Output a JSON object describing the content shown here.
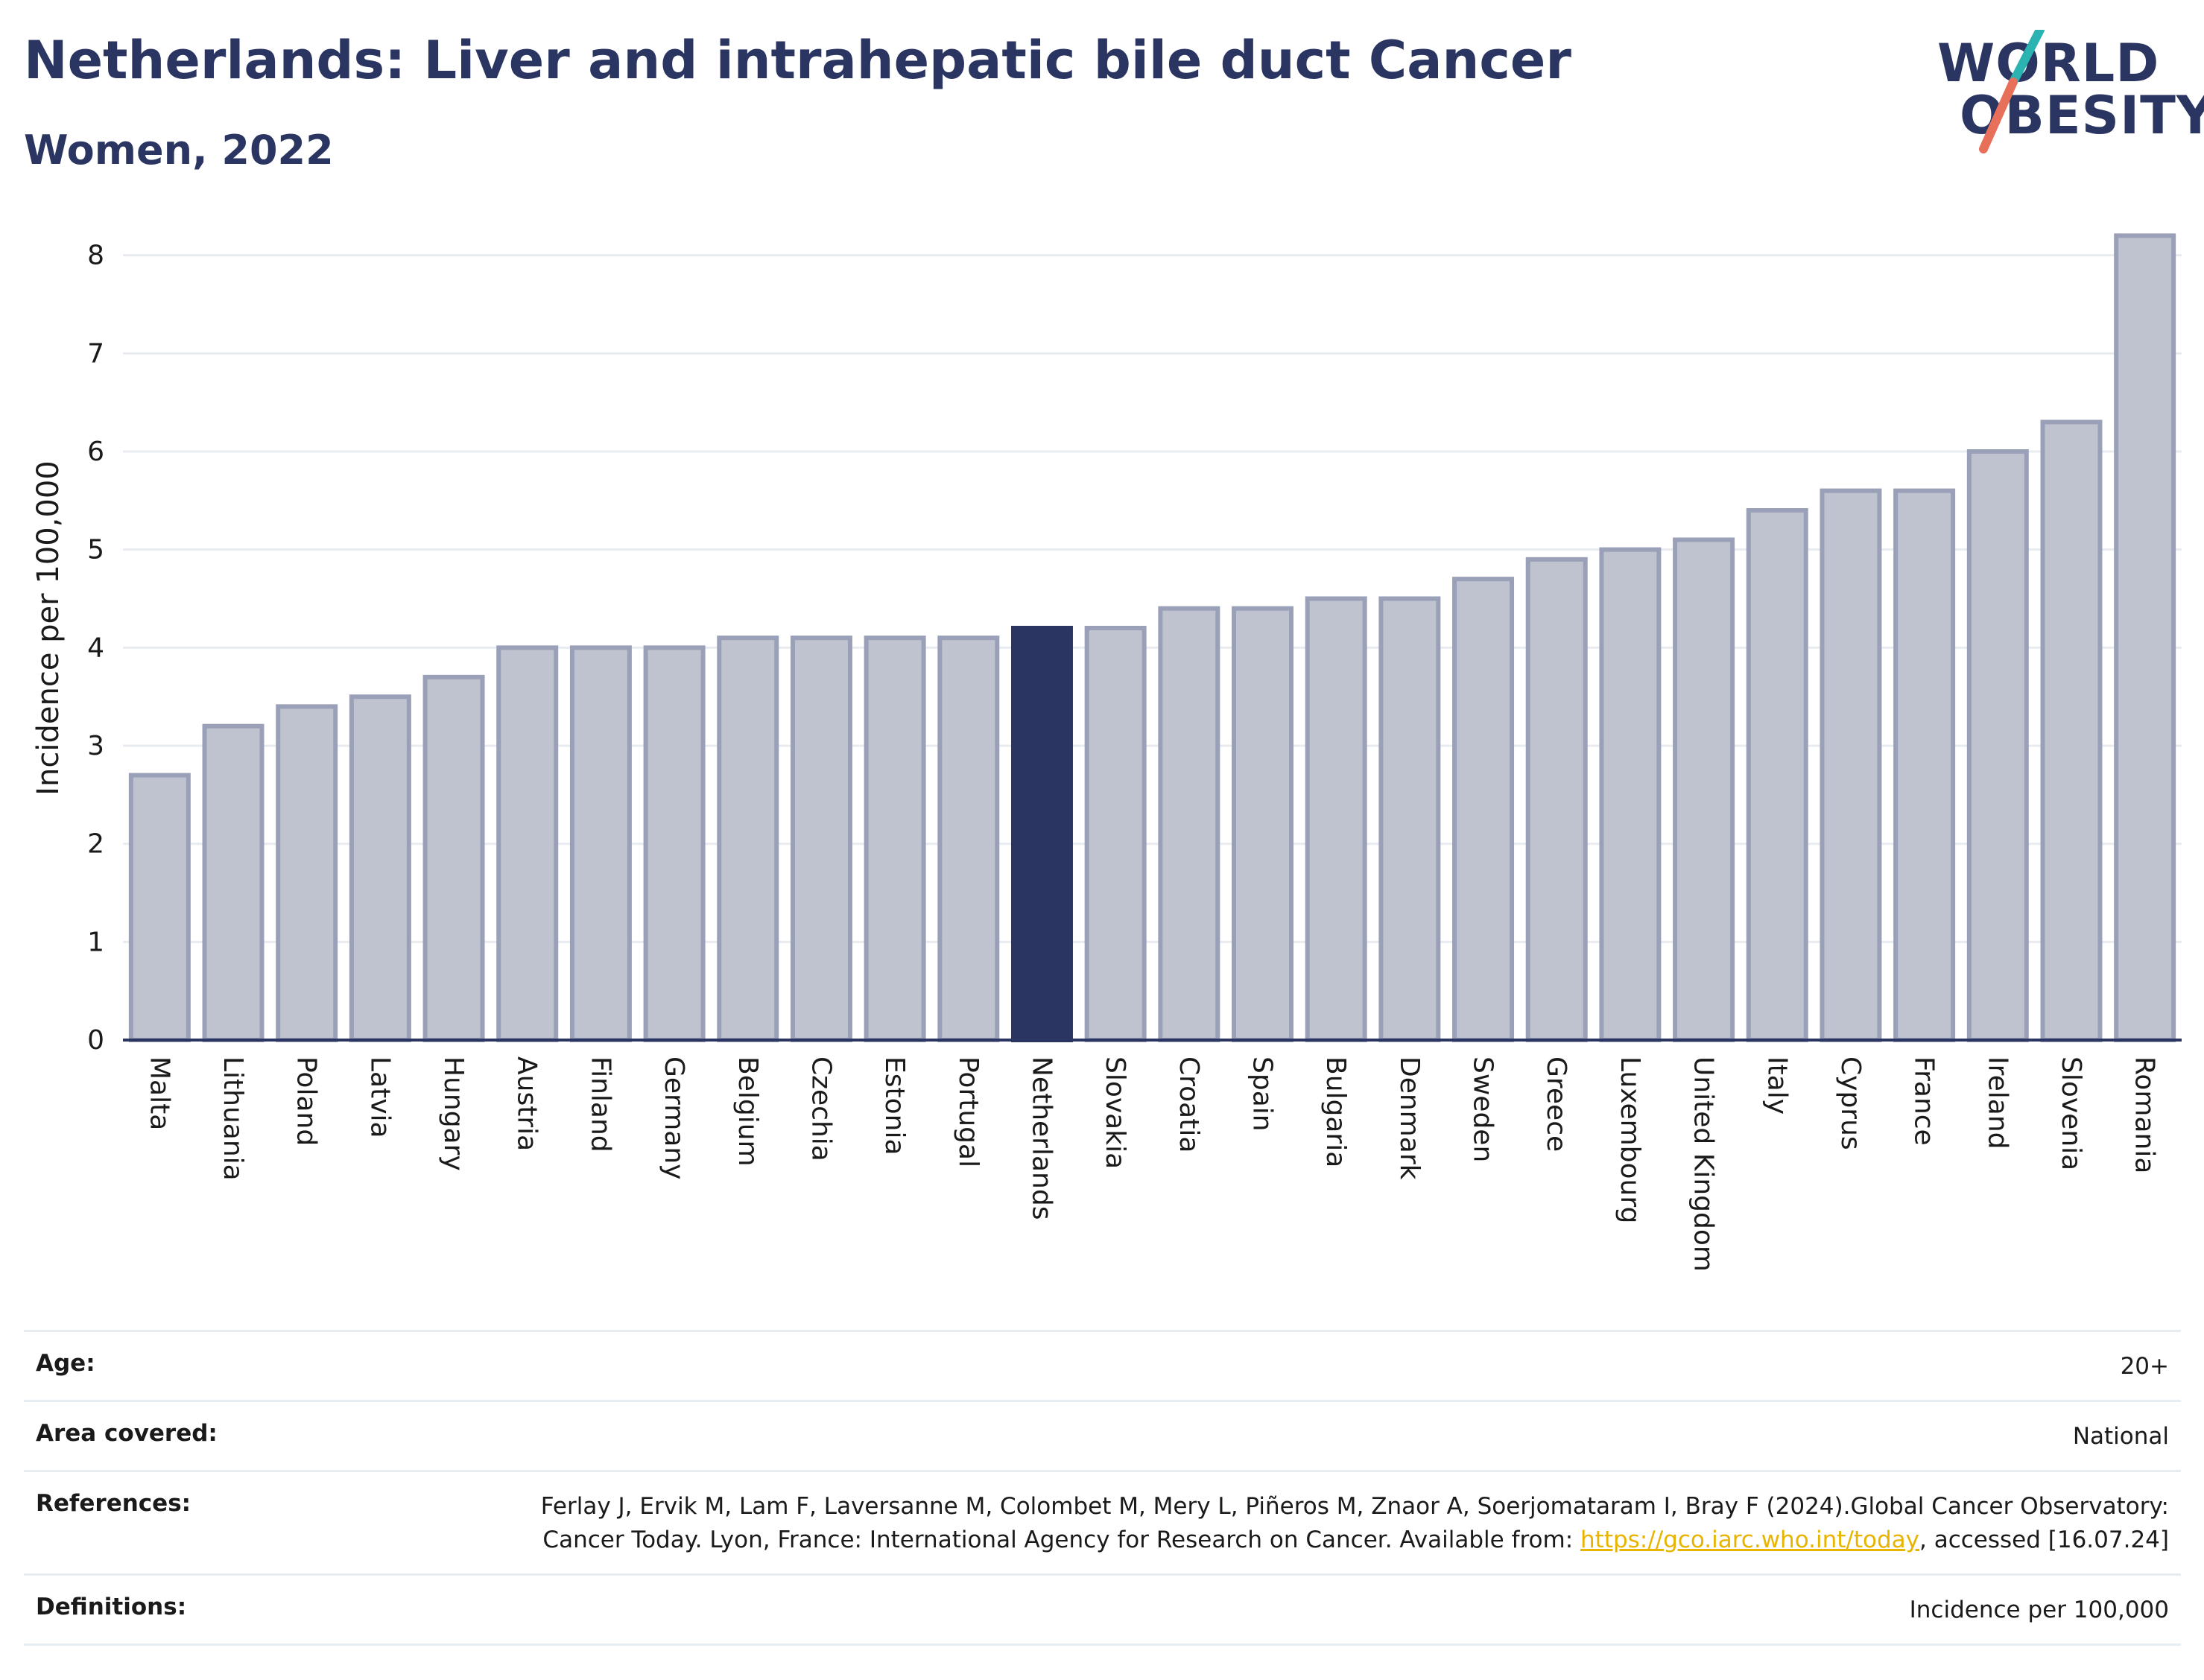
{
  "header": {
    "title": "Netherlands: Liver and intrahepatic bile duct Cancer",
    "subtitle": "Women, 2022"
  },
  "logo": {
    "line1": "WORLD",
    "line2": "OBESITY",
    "colors": {
      "text": "#2b3561",
      "slash_top": "#2bb3b1",
      "slash_bottom": "#e8705a"
    }
  },
  "colors": {
    "bar_fill": "#bfc2cf",
    "bar_stroke": "#9aa0b8",
    "highlight": "#2b3561",
    "grid": "#e8ecf1",
    "axis": "#2b3561"
  },
  "chart_data": {
    "type": "bar",
    "ylabel": "Incidence per 100,000",
    "ylim": [
      0,
      8.4
    ],
    "yticks": [
      0,
      1,
      2,
      3,
      4,
      5,
      6,
      7,
      8
    ],
    "grid": true,
    "highlight": "Netherlands",
    "categories": [
      "Malta",
      "Lithuania",
      "Poland",
      "Latvia",
      "Hungary",
      "Austria",
      "Finland",
      "Germany",
      "Belgium",
      "Czechia",
      "Estonia",
      "Portugal",
      "Netherlands",
      "Slovakia",
      "Croatia",
      "Spain",
      "Bulgaria",
      "Denmark",
      "Sweden",
      "Greece",
      "Luxembourg",
      "United Kingdom",
      "Italy",
      "Cyprus",
      "France",
      "Ireland",
      "Slovenia",
      "Romania"
    ],
    "values": [
      2.7,
      3.2,
      3.4,
      3.5,
      3.7,
      4.0,
      4.0,
      4.0,
      4.1,
      4.1,
      4.1,
      4.1,
      4.2,
      4.2,
      4.4,
      4.4,
      4.5,
      4.5,
      4.7,
      4.9,
      5.0,
      5.1,
      5.4,
      5.6,
      5.6,
      6.0,
      6.3,
      8.2
    ]
  },
  "meta": {
    "age_label": "Age:",
    "age_value": "20+",
    "area_label": "Area covered:",
    "area_value": "National",
    "references_label": "References:",
    "references_text_1": "Ferlay J, Ervik M, Lam F, Laversanne M, Colombet M, Mery L, Piñeros M, Znaor A, Soerjomataram I, Bray F (2024).Global Cancer Observatory: Cancer Today. Lyon, France: International Agency for Research on Cancer. Available from: ",
    "references_link": "https://gco.iarc.who.int/today",
    "references_text_2": ", accessed [16.07.24]",
    "definitions_label": "Definitions:",
    "definitions_value": "Incidence per 100,000"
  }
}
